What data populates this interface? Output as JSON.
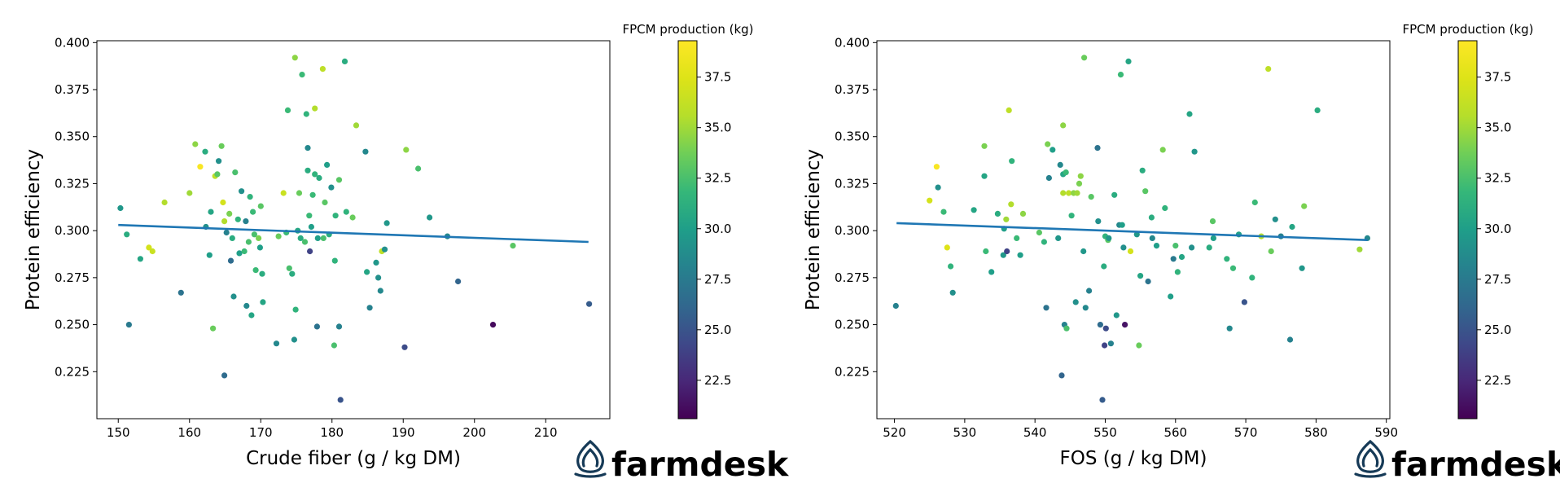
{
  "brand": {
    "name": "farmdesk",
    "color": "#163a57"
  },
  "colorbar": {
    "label": "FPCM production (kg)",
    "range": [
      20.6,
      39.3
    ],
    "ticks": [
      "22.5",
      "25.0",
      "27.5",
      "30.0",
      "32.5",
      "35.0",
      "37.5"
    ],
    "colormap": "viridis"
  },
  "chart_data": [
    {
      "type": "scatter",
      "title": "",
      "xlabel": "Crude fiber (g / kg DM)",
      "ylabel": "Protein efficiency",
      "xlim": [
        147,
        219
      ],
      "ylim": [
        0.2,
        0.401
      ],
      "xticks": [
        "150",
        "160",
        "170",
        "180",
        "190",
        "200",
        "210"
      ],
      "yticks": [
        "0.225",
        "0.250",
        "0.275",
        "0.300",
        "0.325",
        "0.350",
        "0.375",
        "0.400"
      ],
      "trend": {
        "x": [
          150,
          216
        ],
        "y": [
          0.303,
          0.294
        ],
        "color": "#1f77b4"
      },
      "points": [
        [
          150.3,
          0.312,
          29.5
        ],
        [
          151.2,
          0.298,
          31.0
        ],
        [
          151.5,
          0.25,
          27.5
        ],
        [
          153.1,
          0.285,
          30.5
        ],
        [
          154.3,
          0.291,
          37.0
        ],
        [
          154.8,
          0.289,
          36.5
        ],
        [
          156.5,
          0.315,
          35.5
        ],
        [
          158.8,
          0.267,
          27.0
        ],
        [
          160.0,
          0.32,
          35.0
        ],
        [
          160.8,
          0.346,
          34.5
        ],
        [
          161.5,
          0.334,
          39.0
        ],
        [
          162.2,
          0.342,
          31.0
        ],
        [
          162.3,
          0.302,
          29.0
        ],
        [
          162.8,
          0.287,
          30.0
        ],
        [
          163.0,
          0.31,
          30.5
        ],
        [
          163.3,
          0.248,
          33.5
        ],
        [
          163.6,
          0.329,
          36.0
        ],
        [
          163.9,
          0.33,
          33.0
        ],
        [
          164.1,
          0.337,
          29.0
        ],
        [
          164.5,
          0.345,
          33.5
        ],
        [
          164.7,
          0.315,
          37.0
        ],
        [
          164.9,
          0.305,
          35.5
        ],
        [
          164.9,
          0.223,
          26.5
        ],
        [
          165.2,
          0.299,
          28.0
        ],
        [
          165.6,
          0.309,
          34.0
        ],
        [
          165.8,
          0.284,
          26.5
        ],
        [
          166.0,
          0.296,
          31.0
        ],
        [
          166.4,
          0.331,
          32.5
        ],
        [
          166.2,
          0.265,
          29.0
        ],
        [
          166.8,
          0.306,
          31.5
        ],
        [
          167.0,
          0.288,
          30.0
        ],
        [
          167.3,
          0.321,
          29.0
        ],
        [
          167.7,
          0.289,
          32.0
        ],
        [
          167.9,
          0.305,
          28.0
        ],
        [
          168.0,
          0.26,
          28.5
        ],
        [
          168.3,
          0.294,
          32.5
        ],
        [
          168.5,
          0.318,
          31.5
        ],
        [
          168.7,
          0.255,
          30.5
        ],
        [
          168.9,
          0.31,
          32.0
        ],
        [
          169.1,
          0.298,
          32.5
        ],
        [
          169.3,
          0.279,
          32.0
        ],
        [
          169.7,
          0.296,
          34.0
        ],
        [
          169.9,
          0.291,
          30.0
        ],
        [
          170.0,
          0.313,
          33.0
        ],
        [
          170.2,
          0.277,
          31.0
        ],
        [
          170.3,
          0.262,
          30.5
        ],
        [
          172.2,
          0.24,
          28.5
        ],
        [
          172.5,
          0.297,
          33.5
        ],
        [
          173.2,
          0.32,
          36.5
        ],
        [
          173.6,
          0.299,
          32.0
        ],
        [
          173.8,
          0.364,
          32.0
        ],
        [
          174.0,
          0.28,
          32.5
        ],
        [
          174.4,
          0.277,
          31.0
        ],
        [
          174.7,
          0.242,
          29.0
        ],
        [
          174.8,
          0.392,
          34.5
        ],
        [
          174.9,
          0.258,
          31.5
        ],
        [
          175.2,
          0.3,
          30.5
        ],
        [
          175.4,
          0.32,
          33.5
        ],
        [
          175.6,
          0.296,
          31.0
        ],
        [
          175.8,
          0.383,
          32.0
        ],
        [
          176.2,
          0.294,
          32.5
        ],
        [
          176.4,
          0.362,
          31.5
        ],
        [
          176.6,
          0.344,
          28.5
        ],
        [
          176.6,
          0.332,
          31.0
        ],
        [
          176.8,
          0.308,
          32.0
        ],
        [
          176.9,
          0.289,
          24.0
        ],
        [
          177.1,
          0.302,
          30.0
        ],
        [
          177.3,
          0.319,
          32.0
        ],
        [
          177.6,
          0.365,
          35.5
        ],
        [
          177.6,
          0.33,
          31.5
        ],
        [
          177.9,
          0.249,
          27.0
        ],
        [
          178.0,
          0.296,
          30.0
        ],
        [
          178.2,
          0.328,
          31.0
        ],
        [
          178.7,
          0.386,
          36.0
        ],
        [
          178.8,
          0.296,
          32.5
        ],
        [
          179.0,
          0.315,
          33.0
        ],
        [
          179.3,
          0.335,
          30.0
        ],
        [
          179.6,
          0.298,
          31.0
        ],
        [
          179.9,
          0.323,
          29.0
        ],
        [
          180.3,
          0.239,
          32.5
        ],
        [
          180.4,
          0.284,
          31.5
        ],
        [
          180.5,
          0.308,
          31.5
        ],
        [
          181.0,
          0.327,
          33.0
        ],
        [
          181.0,
          0.249,
          28.0
        ],
        [
          181.2,
          0.21,
          25.0
        ],
        [
          181.8,
          0.39,
          31.0
        ],
        [
          182.0,
          0.31,
          31.5
        ],
        [
          182.9,
          0.307,
          33.5
        ],
        [
          183.4,
          0.356,
          35.0
        ],
        [
          184.7,
          0.342,
          28.5
        ],
        [
          184.9,
          0.278,
          30.5
        ],
        [
          185.3,
          0.259,
          28.0
        ],
        [
          186.2,
          0.283,
          29.5
        ],
        [
          186.5,
          0.275,
          29.0
        ],
        [
          186.8,
          0.268,
          28.5
        ],
        [
          187.0,
          0.289,
          36.0
        ],
        [
          187.4,
          0.29,
          29.0
        ],
        [
          187.7,
          0.304,
          29.5
        ],
        [
          190.2,
          0.238,
          24.5
        ],
        [
          190.4,
          0.343,
          34.5
        ],
        [
          192.1,
          0.333,
          32.5
        ],
        [
          193.7,
          0.307,
          29.5
        ],
        [
          196.2,
          0.297,
          28.5
        ],
        [
          197.7,
          0.273,
          26.0
        ],
        [
          202.6,
          0.25,
          21.0
        ],
        [
          205.4,
          0.292,
          33.0
        ],
        [
          216.1,
          0.261,
          25.5
        ]
      ]
    },
    {
      "type": "scatter",
      "title": "",
      "xlabel": "FOS (g / kg DM)",
      "ylabel": "Protein efficiency",
      "xlim": [
        517.5,
        590.5
      ],
      "ylim": [
        0.2,
        0.401
      ],
      "xticks": [
        "520",
        "530",
        "540",
        "550",
        "560",
        "570",
        "580",
        "590"
      ],
      "yticks": [
        "0.225",
        "0.250",
        "0.275",
        "0.300",
        "0.325",
        "0.350",
        "0.375",
        "0.400"
      ],
      "trend": {
        "x": [
          520.3,
          587.3
        ],
        "y": [
          0.304,
          0.295
        ],
        "color": "#1f77b4"
      },
      "points": [
        [
          520.2,
          0.26,
          28.0
        ],
        [
          525.0,
          0.316,
          37.0
        ],
        [
          526.0,
          0.334,
          39.0
        ],
        [
          526.2,
          0.323,
          29.0
        ],
        [
          527.0,
          0.31,
          32.0
        ],
        [
          527.5,
          0.291,
          37.5
        ],
        [
          528.0,
          0.281,
          31.5
        ],
        [
          528.3,
          0.267,
          29.0
        ],
        [
          531.3,
          0.311,
          30.5
        ],
        [
          532.8,
          0.345,
          34.0
        ],
        [
          532.8,
          0.329,
          30.5
        ],
        [
          533.0,
          0.289,
          32.0
        ],
        [
          533.8,
          0.278,
          30.0
        ],
        [
          534.7,
          0.309,
          31.0
        ],
        [
          535.5,
          0.287,
          29.5
        ],
        [
          535.6,
          0.301,
          30.0
        ],
        [
          535.9,
          0.306,
          35.0
        ],
        [
          536.0,
          0.289,
          24.0
        ],
        [
          536.3,
          0.364,
          36.0
        ],
        [
          536.6,
          0.314,
          35.5
        ],
        [
          536.7,
          0.337,
          31.5
        ],
        [
          537.4,
          0.296,
          32.0
        ],
        [
          537.9,
          0.287,
          30.0
        ],
        [
          538.3,
          0.309,
          34.5
        ],
        [
          540.6,
          0.299,
          33.0
        ],
        [
          541.3,
          0.294,
          31.5
        ],
        [
          541.6,
          0.259,
          27.0
        ],
        [
          541.8,
          0.346,
          34.0
        ],
        [
          542.0,
          0.328,
          28.0
        ],
        [
          542.5,
          0.343,
          30.0
        ],
        [
          543.3,
          0.296,
          29.5
        ],
        [
          543.6,
          0.335,
          28.5
        ],
        [
          543.8,
          0.223,
          26.0
        ],
        [
          544.0,
          0.33,
          30.5
        ],
        [
          544.0,
          0.32,
          35.5
        ],
        [
          544.0,
          0.356,
          34.5
        ],
        [
          544.2,
          0.25,
          28.0
        ],
        [
          544.4,
          0.331,
          32.0
        ],
        [
          544.5,
          0.248,
          32.5
        ],
        [
          544.8,
          0.32,
          36.0
        ],
        [
          545.2,
          0.308,
          31.5
        ],
        [
          545.5,
          0.32,
          34.5
        ],
        [
          545.8,
          0.262,
          29.0
        ],
        [
          546.0,
          0.32,
          35.0
        ],
        [
          546.3,
          0.325,
          34.0
        ],
        [
          546.5,
          0.329,
          34.5
        ],
        [
          546.9,
          0.289,
          29.5
        ],
        [
          547.0,
          0.392,
          33.5
        ],
        [
          547.2,
          0.259,
          28.5
        ],
        [
          547.7,
          0.268,
          28.0
        ],
        [
          548.0,
          0.318,
          33.0
        ],
        [
          548.9,
          0.344,
          27.0
        ],
        [
          549.0,
          0.305,
          29.0
        ],
        [
          549.3,
          0.25,
          26.5
        ],
        [
          549.6,
          0.21,
          25.5
        ],
        [
          549.8,
          0.281,
          31.0
        ],
        [
          549.9,
          0.239,
          24.0
        ],
        [
          550.0,
          0.297,
          31.5
        ],
        [
          550.1,
          0.248,
          24.5
        ],
        [
          550.4,
          0.295,
          33.0
        ],
        [
          550.5,
          0.296,
          29.5
        ],
        [
          550.8,
          0.24,
          28.0
        ],
        [
          551.3,
          0.319,
          31.0
        ],
        [
          551.6,
          0.255,
          29.5
        ],
        [
          552.0,
          0.303,
          28.5
        ],
        [
          552.2,
          0.383,
          32.0
        ],
        [
          552.4,
          0.303,
          30.0
        ],
        [
          552.6,
          0.291,
          29.0
        ],
        [
          552.8,
          0.25,
          21.5
        ],
        [
          553.3,
          0.39,
          30.5
        ],
        [
          553.6,
          0.289,
          37.0
        ],
        [
          554.5,
          0.298,
          29.5
        ],
        [
          554.8,
          0.239,
          33.5
        ],
        [
          555.0,
          0.276,
          30.5
        ],
        [
          555.3,
          0.332,
          31.0
        ],
        [
          555.7,
          0.321,
          33.0
        ],
        [
          556.1,
          0.273,
          27.0
        ],
        [
          556.6,
          0.307,
          31.0
        ],
        [
          556.7,
          0.296,
          28.5
        ],
        [
          557.3,
          0.292,
          30.0
        ],
        [
          558.2,
          0.343,
          34.0
        ],
        [
          558.5,
          0.312,
          31.5
        ],
        [
          559.3,
          0.265,
          30.0
        ],
        [
          559.7,
          0.285,
          27.5
        ],
        [
          560.0,
          0.292,
          32.5
        ],
        [
          560.3,
          0.278,
          31.5
        ],
        [
          560.9,
          0.286,
          30.5
        ],
        [
          562.0,
          0.362,
          30.5
        ],
        [
          562.3,
          0.291,
          29.0
        ],
        [
          562.7,
          0.342,
          29.5
        ],
        [
          564.8,
          0.291,
          31.0
        ],
        [
          565.3,
          0.305,
          33.0
        ],
        [
          565.4,
          0.296,
          30.0
        ],
        [
          567.3,
          0.285,
          31.5
        ],
        [
          567.7,
          0.248,
          28.5
        ],
        [
          568.2,
          0.28,
          32.0
        ],
        [
          569.0,
          0.298,
          30.0
        ],
        [
          569.8,
          0.262,
          25.0
        ],
        [
          570.9,
          0.275,
          31.5
        ],
        [
          571.3,
          0.315,
          32.0
        ],
        [
          572.2,
          0.297,
          35.5
        ],
        [
          573.2,
          0.386,
          36.0
        ],
        [
          573.6,
          0.289,
          33.5
        ],
        [
          574.2,
          0.306,
          29.0
        ],
        [
          575.0,
          0.297,
          28.0
        ],
        [
          576.3,
          0.242,
          28.0
        ],
        [
          576.6,
          0.302,
          30.5
        ],
        [
          578.0,
          0.28,
          29.5
        ],
        [
          578.3,
          0.313,
          34.0
        ],
        [
          580.2,
          0.364,
          31.0
        ],
        [
          586.2,
          0.29,
          35.0
        ],
        [
          587.3,
          0.296,
          28.5
        ]
      ]
    }
  ]
}
